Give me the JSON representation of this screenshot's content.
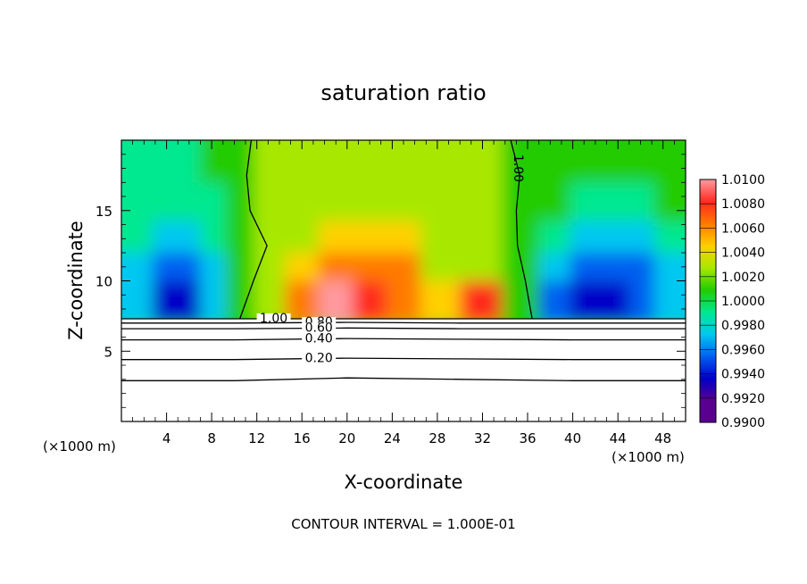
{
  "chart_data": {
    "type": "heatmap",
    "title": "saturation ratio",
    "xlabel": "X-coordinate",
    "ylabel": "Z-coordinate",
    "x_unit": "(×1000 m)",
    "x_unit_right": "(×1000 m)",
    "xlim": [
      0,
      50
    ],
    "ylim": [
      0,
      20
    ],
    "x_ticks": [
      4,
      8,
      12,
      16,
      20,
      24,
      28,
      32,
      36,
      40,
      44,
      48
    ],
    "y_ticks": [
      5,
      10,
      15
    ],
    "footer": "CONTOUR INTERVAL = 1.000E-01",
    "colorbar": {
      "levels": [
        "1.0100",
        "1.0080",
        "1.0060",
        "1.0040",
        "1.0020",
        "1.0000",
        "0.9980",
        "0.9960",
        "0.9940",
        "0.9920",
        "0.9900"
      ],
      "colors": [
        "#ff9aa0",
        "#ff2a1e",
        "#ff7a00",
        "#ffd000",
        "#a8e800",
        "#22cc00",
        "#00e890",
        "#00c8f0",
        "#0060f0",
        "#0000c8",
        "#5a0090"
      ]
    },
    "fill_grid": [
      [
        0.9976,
        0.9972,
        0.9978,
        0.9984,
        0.9998,
        1.0,
        1.0,
        1.0,
        1.0006,
        1.0002,
        1.0,
        1.0,
        0.9996,
        0.9994,
        0.9988,
        0.9986,
        0.999,
        0.9992
      ],
      [
        0.9972,
        0.9962,
        0.9966,
        0.9976,
        0.9996,
        1.0,
        1.0002,
        1.0008,
        1.0018,
        1.0008,
        1.0004,
        1.0,
        0.999,
        0.998,
        0.9968,
        0.9966,
        0.9976,
        0.9984
      ],
      [
        0.996,
        0.9946,
        0.9948,
        0.9962,
        0.9992,
        1.0,
        1.001,
        1.0022,
        1.0034,
        1.0024,
        1.0008,
        1.0,
        0.9984,
        0.9962,
        0.9948,
        0.9946,
        0.9956,
        0.9972
      ],
      [
        0.9952,
        0.9932,
        0.993,
        0.995,
        0.9988,
        1.0002,
        1.0022,
        1.0044,
        1.0048,
        1.0046,
        1.0014,
        1.0002,
        0.998,
        0.9946,
        0.9928,
        0.9926,
        0.9936,
        0.9954
      ],
      [
        0.9944,
        0.9912,
        0.9918,
        0.9944,
        0.9988,
        1.0006,
        1.005,
        1.0082,
        1.006,
        1.0052,
        1.0026,
        1.006,
        0.998,
        0.993,
        0.9912,
        0.9916,
        0.9928,
        0.9944
      ]
    ],
    "fill_x": [
      1.5,
      4,
      6,
      8,
      10.5,
      13,
      16,
      19,
      22,
      25,
      28,
      32,
      35.5,
      38.5,
      41,
      44,
      46,
      48.5
    ],
    "fill_z": [
      18.5,
      15.5,
      13,
      11,
      9
    ],
    "ground_z": 7.3,
    "contours": [
      {
        "label": "1.00",
        "x": [
          0,
          10,
          20,
          30,
          40,
          50
        ],
        "z": [
          7.3,
          7.3,
          7.3,
          7.3,
          7.3,
          7.3
        ],
        "labeled_at": 13.5
      },
      {
        "label": "0.80",
        "x": [
          0,
          10,
          20,
          30,
          40,
          50
        ],
        "z": [
          7.0,
          7.0,
          7.05,
          7.0,
          7.0,
          7.0
        ],
        "labeled_at": 17.5
      },
      {
        "label": "0.60",
        "x": [
          0,
          10,
          20,
          30,
          40,
          50
        ],
        "z": [
          6.6,
          6.6,
          6.65,
          6.6,
          6.6,
          6.6
        ],
        "labeled_at": 17.5
      },
      {
        "label": "0.40",
        "x": [
          0,
          10,
          20,
          30,
          40,
          50
        ],
        "z": [
          5.8,
          5.8,
          5.9,
          5.85,
          5.8,
          5.8
        ],
        "labeled_at": 17.5
      },
      {
        "label": "0.20",
        "x": [
          0,
          10,
          20,
          30,
          40,
          50
        ],
        "z": [
          4.4,
          4.4,
          4.5,
          4.45,
          4.4,
          4.4
        ],
        "labeled_at": 17.5
      },
      {
        "label": "",
        "x": [
          0,
          10,
          20,
          30,
          40,
          50
        ],
        "z": [
          2.9,
          2.9,
          3.1,
          3.0,
          2.9,
          2.9
        ],
        "labeled_at": null
      },
      {
        "label": "1.00",
        "x": [
          11.5,
          11.1,
          11.4,
          12.9,
          11.7,
          10.5
        ],
        "z": [
          20,
          17.5,
          15,
          12.5,
          10,
          7.3
        ],
        "labeled_at": null
      },
      {
        "label": "1.00",
        "x": [
          34.5,
          35.3,
          35.0,
          35.1,
          35.8,
          36.4
        ],
        "z": [
          20,
          17.5,
          15,
          12.5,
          10,
          7.3
        ],
        "labeled_at": 18.0
      }
    ]
  }
}
